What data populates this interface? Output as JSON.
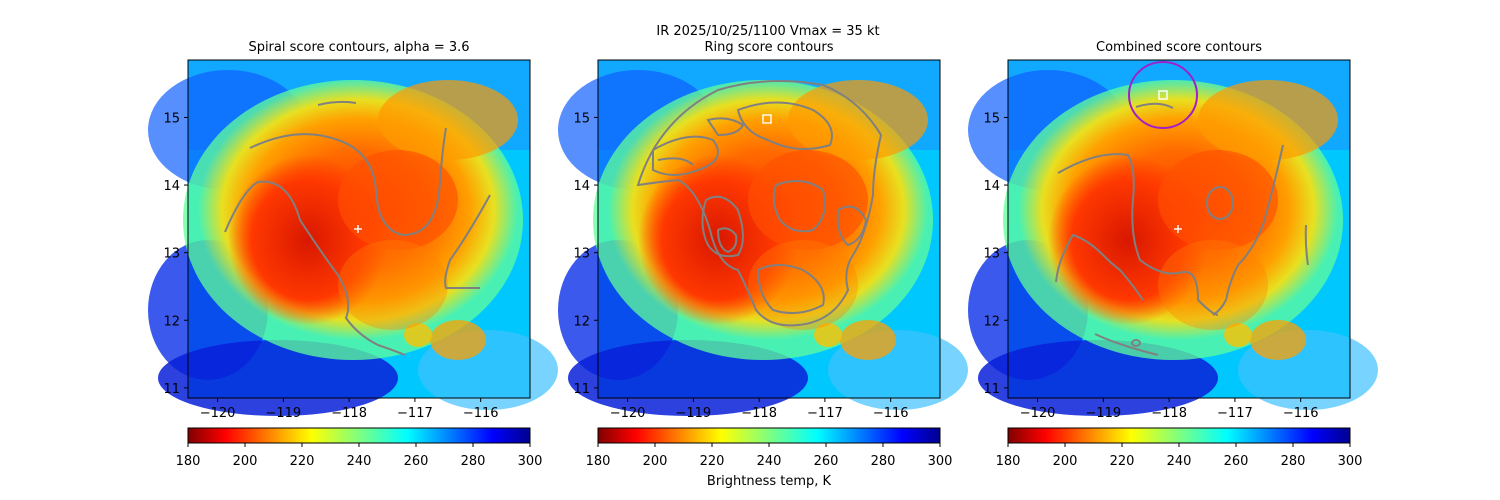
{
  "figure": {
    "suptitle_line1": "IR  2025/10/25/1100    Vmax = 35 kt",
    "colorbar_label": "Brightness temp, K"
  },
  "colors": {
    "contour": "#808080",
    "circle": "#a020c8",
    "marker": "#ffffff"
  },
  "chart_data": [
    {
      "type": "heatmap",
      "title": "Spiral score contours, alpha =  3.6",
      "xlim": [
        -120.45,
        -115.25
      ],
      "ylim": [
        10.85,
        15.85
      ],
      "xticks": [
        -120,
        -119,
        -118,
        -117,
        -116
      ],
      "xtick_labels": [
        "−120",
        "−119",
        "−118",
        "−117",
        "−116"
      ],
      "yticks": [
        11,
        12,
        13,
        14,
        15
      ],
      "ytick_labels": [
        "11",
        "12",
        "13",
        "14",
        "15"
      ],
      "center_marker": {
        "symbol": "plus",
        "lon": -117.9,
        "lat": 13.36
      },
      "colorbar": {
        "colormap": "jet_r",
        "range": [
          180,
          300
        ],
        "ticks": [
          180,
          200,
          220,
          240,
          260,
          280,
          300
        ]
      }
    },
    {
      "type": "heatmap",
      "title": "Ring score contours",
      "xlim": [
        -120.45,
        -115.25
      ],
      "ylim": [
        10.85,
        15.85
      ],
      "xticks": [
        -120,
        -119,
        -118,
        -117,
        -116
      ],
      "xtick_labels": [
        "−120",
        "−119",
        "−118",
        "−117",
        "−116"
      ],
      "yticks": [
        11,
        12,
        13,
        14,
        15
      ],
      "ytick_labels": [
        "11",
        "12",
        "13",
        "14",
        "15"
      ],
      "center_marker": {
        "symbol": "square",
        "lon": -117.9,
        "lat": 14.98
      },
      "colorbar": {
        "colormap": "jet_r",
        "range": [
          180,
          300
        ],
        "ticks": [
          180,
          200,
          220,
          240,
          260,
          280,
          300
        ]
      }
    },
    {
      "type": "heatmap",
      "title": "Combined score contours",
      "xlim": [
        -120.45,
        -115.25
      ],
      "ylim": [
        10.85,
        15.85
      ],
      "xticks": [
        -120,
        -119,
        -118,
        -117,
        -116
      ],
      "xtick_labels": [
        "−120",
        "−119",
        "−118",
        "−117",
        "−116"
      ],
      "yticks": [
        11,
        12,
        13,
        14,
        15
      ],
      "ytick_labels": [
        "11",
        "12",
        "13",
        "14",
        "15"
      ],
      "center_marker": {
        "symbol": "plus",
        "lon": -117.9,
        "lat": 13.36
      },
      "square_marker": {
        "symbol": "square",
        "lon": -118.1,
        "lat": 15.35
      },
      "circle_marker": {
        "lon": -118.1,
        "lat": 15.35,
        "radius_deg": 0.5
      },
      "colorbar": {
        "colormap": "jet_r",
        "range": [
          180,
          300
        ],
        "ticks": [
          180,
          200,
          220,
          240,
          260,
          280,
          300
        ]
      }
    }
  ]
}
